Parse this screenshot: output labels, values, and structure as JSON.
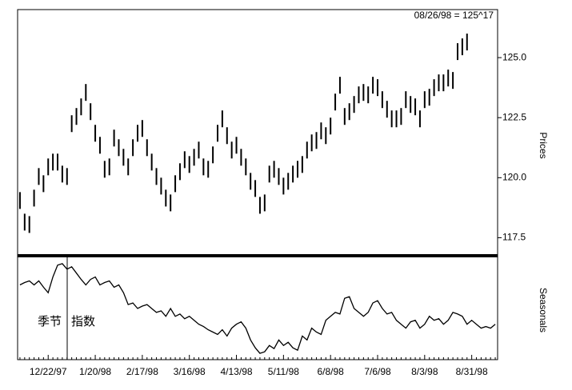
{
  "chart_data": [
    {
      "type": "ohlc",
      "y_label": "Prices",
      "annotation": "08/26/98 = 125^17",
      "color": "#000000",
      "ylim": [
        116.75,
        127
      ],
      "yticks": [
        117.5,
        {
          "value": 120,
          "label": "120.0"
        },
        122.5,
        {
          "value": 125,
          "label": "125.0"
        }
      ],
      "high": [
        119.4,
        118.5,
        118.4,
        119.5,
        120.4,
        120.1,
        120.8,
        121.0,
        121.0,
        120.5,
        120.4,
        122.6,
        122.9,
        123.3,
        123.9,
        123.1,
        122.2,
        121.7,
        120.7,
        120.8,
        122.0,
        121.6,
        121.2,
        120.8,
        121.6,
        122.2,
        122.4,
        121.6,
        121.0,
        120.4,
        120.0,
        119.5,
        119.3,
        120.1,
        120.6,
        121.1,
        120.9,
        121.2,
        121.5,
        120.8,
        120.7,
        121.3,
        122.2,
        122.8,
        122.1,
        121.5,
        121.7,
        121.2,
        120.8,
        120.2,
        119.9,
        119.2,
        119.3,
        120.5,
        120.7,
        120.4,
        120.0,
        120.2,
        120.5,
        120.7,
        120.9,
        121.5,
        121.8,
        121.9,
        122.3,
        122.1,
        122.5,
        123.5,
        124.2,
        122.9,
        123.1,
        123.4,
        123.8,
        123.9,
        123.8,
        124.2,
        124.1,
        123.6,
        123.2,
        122.8,
        122.8,
        122.9,
        123.6,
        123.4,
        123.3,
        122.8,
        123.6,
        123.7,
        124.1,
        124.3,
        124.3,
        124.5,
        124.4,
        125.6,
        125.8,
        126.0
      ],
      "low": [
        118.7,
        117.8,
        117.7,
        118.8,
        119.7,
        119.4,
        120.1,
        120.3,
        120.3,
        119.8,
        119.7,
        121.9,
        122.2,
        122.6,
        123.2,
        122.4,
        121.5,
        121.0,
        120.0,
        120.1,
        121.3,
        120.9,
        120.5,
        120.1,
        120.9,
        121.5,
        121.7,
        120.9,
        120.3,
        119.7,
        119.3,
        118.8,
        118.6,
        119.4,
        119.9,
        120.4,
        120.2,
        120.5,
        120.8,
        120.1,
        120.0,
        120.6,
        121.5,
        122.1,
        121.4,
        120.8,
        121.0,
        120.5,
        120.1,
        119.5,
        119.2,
        118.5,
        118.6,
        119.8,
        120.0,
        119.7,
        119.3,
        119.5,
        119.8,
        120.0,
        120.2,
        120.8,
        121.1,
        121.2,
        121.6,
        121.4,
        121.8,
        122.8,
        123.5,
        122.2,
        122.4,
        122.7,
        123.1,
        123.2,
        123.1,
        123.5,
        123.4,
        122.9,
        122.5,
        122.1,
        122.1,
        122.2,
        122.9,
        122.7,
        122.6,
        122.1,
        122.9,
        123.0,
        123.4,
        123.6,
        123.6,
        123.8,
        123.7,
        124.9,
        125.1,
        125.3
      ]
    },
    {
      "type": "line",
      "y_label": "Seasonals",
      "annotations": [
        "季节",
        "指数"
      ],
      "color": "#000000",
      "ylim": [
        0,
        130
      ],
      "categories": [
        null,
        null,
        null,
        null,
        null,
        null,
        "12/22/97",
        null,
        null,
        null,
        null,
        null,
        null,
        null,
        null,
        null,
        "1/20/98",
        null,
        null,
        null,
        null,
        null,
        null,
        null,
        null,
        null,
        "2/17/98",
        null,
        null,
        null,
        null,
        null,
        null,
        null,
        null,
        null,
        "3/16/98",
        null,
        null,
        null,
        null,
        null,
        null,
        null,
        null,
        null,
        "4/13/98",
        null,
        null,
        null,
        null,
        null,
        null,
        null,
        null,
        null,
        "5/11/98",
        null,
        null,
        null,
        null,
        null,
        null,
        null,
        null,
        null,
        "6/8/98",
        null,
        null,
        null,
        null,
        null,
        null,
        null,
        null,
        null,
        "7/6/98",
        null,
        null,
        null,
        null,
        null,
        null,
        null,
        null,
        null,
        "8/3/98",
        null,
        null,
        null,
        null,
        null,
        null,
        null,
        null,
        null,
        "8/31/98",
        null,
        null,
        null,
        null,
        null
      ],
      "values": [
        95,
        98,
        100,
        95,
        100,
        92,
        85,
        105,
        120,
        122,
        115,
        118,
        110,
        102,
        95,
        102,
        105,
        95,
        98,
        100,
        92,
        95,
        85,
        70,
        72,
        65,
        68,
        70,
        65,
        60,
        62,
        55,
        65,
        55,
        58,
        52,
        55,
        50,
        45,
        42,
        38,
        35,
        32,
        38,
        30,
        40,
        45,
        48,
        40,
        25,
        15,
        8,
        10,
        18,
        14,
        25,
        18,
        22,
        15,
        12,
        30,
        25,
        40,
        35,
        32,
        50,
        55,
        60,
        58,
        78,
        80,
        65,
        60,
        55,
        60,
        72,
        75,
        65,
        58,
        60,
        50,
        45,
        40,
        48,
        50,
        40,
        45,
        55,
        50,
        52,
        45,
        50,
        60,
        58,
        55,
        45,
        50,
        45,
        40,
        42,
        40,
        45
      ]
    }
  ]
}
